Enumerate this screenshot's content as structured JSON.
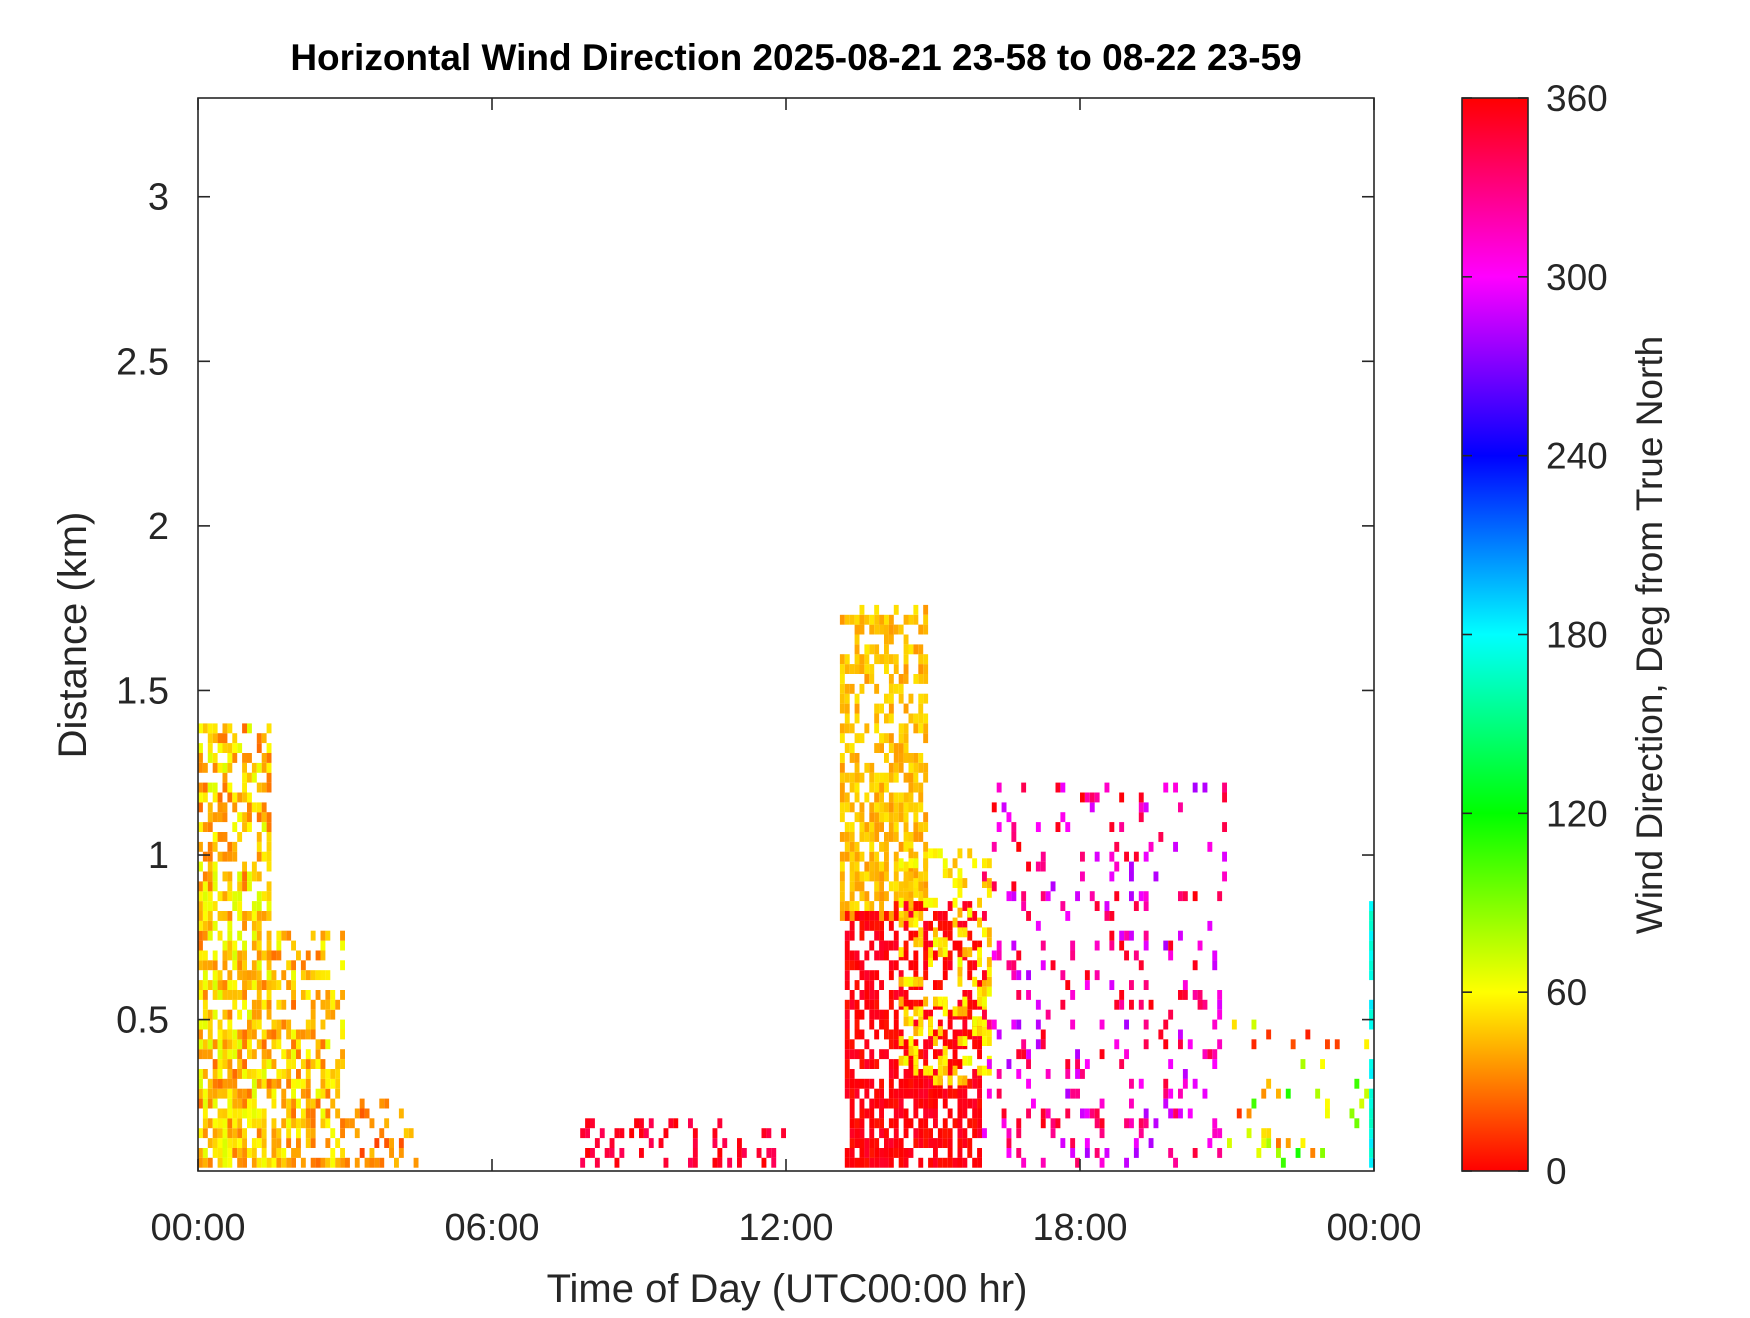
{
  "chart_data": {
    "type": "heatmap",
    "title": "Horizontal Wind Direction 2025-08-21 23-58 to 08-22 23-59",
    "xlabel": "Time of Day (UTC00:00 hr)",
    "ylabel": "Distance (km)",
    "colorbar_label": "Wind Direction, Deg from True North",
    "x_ticks": [
      "00:00",
      "06:00",
      "12:00",
      "18:00",
      "00:00"
    ],
    "x_tick_hours": [
      0,
      6,
      12,
      18,
      24
    ],
    "xlim_hours": [
      0,
      24
    ],
    "y_ticks": [
      "0.5",
      "1",
      "1.5",
      "2",
      "2.5",
      "3"
    ],
    "y_tick_values": [
      0.5,
      1,
      1.5,
      2,
      2.5,
      3
    ],
    "ylim_km": [
      0.04,
      3.3
    ],
    "colorbar_ticks": [
      "0",
      "60",
      "120",
      "180",
      "240",
      "300",
      "360"
    ],
    "colorbar_tick_values": [
      0,
      60,
      120,
      180,
      240,
      300,
      360
    ],
    "clim": [
      0,
      360
    ],
    "colormap": [
      "#ff0000",
      "#ffff00",
      "#00ff00",
      "#00ffff",
      "#0000ff",
      "#ff00ff",
      "#ff0000"
    ],
    "grid": false,
    "regions": [
      {
        "hour_start": 0.0,
        "hour_end": 1.5,
        "dist_min_km": 0.05,
        "dist_max_km": 1.4,
        "dir_min": 25,
        "dir_max": 70,
        "density": 0.85
      },
      {
        "hour_start": 1.5,
        "hour_end": 3.0,
        "dist_min_km": 0.05,
        "dist_max_km": 0.75,
        "dir_min": 25,
        "dir_max": 65,
        "density": 0.65
      },
      {
        "hour_start": 3.0,
        "hour_end": 4.5,
        "dist_min_km": 0.05,
        "dist_max_km": 0.25,
        "dir_min": 15,
        "dir_max": 50,
        "density": 0.35
      },
      {
        "hour_start": 7.8,
        "hour_end": 12.0,
        "dist_min_km": 0.05,
        "dist_max_km": 0.2,
        "dir_min": 340,
        "dir_max": 360,
        "density": 0.4
      },
      {
        "hour_start": 13.1,
        "hour_end": 14.9,
        "dist_min_km": 0.8,
        "dist_max_km": 1.75,
        "dir_min": 35,
        "dir_max": 55,
        "density": 0.8
      },
      {
        "hour_start": 13.2,
        "hour_end": 16.0,
        "dist_min_km": 0.05,
        "dist_max_km": 0.85,
        "dir_min": 350,
        "dir_max": 365,
        "density": 0.75
      },
      {
        "hour_start": 14.3,
        "hour_end": 16.2,
        "dist_min_km": 0.3,
        "dist_max_km": 1.0,
        "dir_min": 40,
        "dir_max": 65,
        "density": 0.45
      },
      {
        "hour_start": 16.0,
        "hour_end": 21.0,
        "dist_min_km": 0.05,
        "dist_max_km": 1.2,
        "dir_min": 280,
        "dir_max": 360,
        "density": 0.18
      },
      {
        "hour_start": 21.0,
        "hour_end": 24.0,
        "dist_min_km": 0.05,
        "dist_max_km": 0.5,
        "dir_min": 0,
        "dir_max": 120,
        "density": 0.1
      },
      {
        "hour_start": 23.9,
        "hour_end": 24.0,
        "dist_min_km": 0.05,
        "dist_max_km": 0.85,
        "dir_min": 165,
        "dir_max": 185,
        "density": 0.8
      }
    ]
  }
}
